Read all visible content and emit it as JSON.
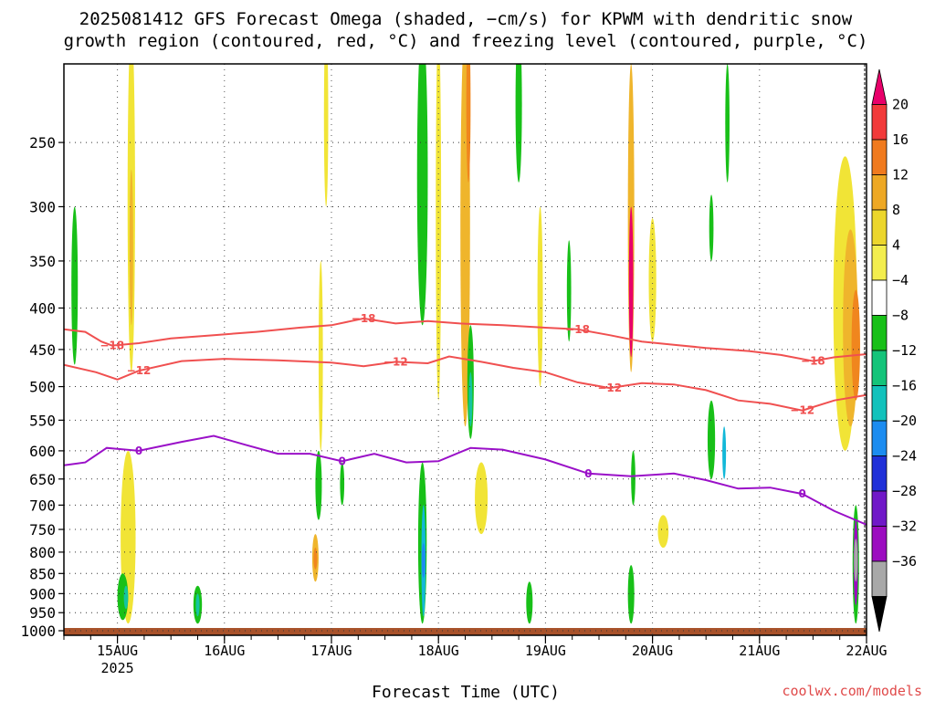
{
  "title": {
    "line1": "2025081412 GFS Forecast Omega (shaded, −cm/s) for KPWM with dendritic snow",
    "line2": "growth region (contoured, red, °C) and freezing level (contoured, purple, °C)"
  },
  "xlabel": "Forecast Time (UTC)",
  "credit": "coolwx.com/models",
  "chart_data": {
    "type": "heatmap",
    "x_ticks": [
      {
        "label": "15AUG",
        "sublabel": "2025",
        "day": 15
      },
      {
        "label": "16AUG",
        "day": 16
      },
      {
        "label": "17AUG",
        "day": 17
      },
      {
        "label": "18AUG",
        "day": 18
      },
      {
        "label": "19AUG",
        "day": 19
      },
      {
        "label": "20AUG",
        "day": 20
      },
      {
        "label": "21AUG",
        "day": 21
      },
      {
        "label": "22AUG",
        "day": 22
      }
    ],
    "xlim_day": [
      14.5,
      22.0
    ],
    "y_ticks": [
      250,
      300,
      350,
      400,
      450,
      500,
      550,
      600,
      650,
      700,
      750,
      800,
      850,
      900,
      950,
      1000
    ],
    "ylim_hPa": [
      200,
      1013
    ],
    "y_scale": "log",
    "colorbar": {
      "labels": [
        "20",
        "16",
        "12",
        "8",
        "4",
        "−4",
        "−8",
        "−12",
        "−16",
        "−20",
        "−24",
        "−28",
        "−32",
        "−36"
      ],
      "colors": [
        "#e8006a",
        "#f23a3a",
        "#f07a1e",
        "#eea824",
        "#ecd62c",
        "#f3ee4e",
        "#ffffff",
        "#18c018",
        "#14c47a",
        "#12c2bc",
        "#1c8cf0",
        "#2030d8",
        "#7018c8",
        "#9c0cc0",
        "#a8a8a8",
        "#000000"
      ]
    },
    "contours": [
      {
        "name": "-18",
        "color": "#f05050",
        "labels": [
          "−18",
          "−18",
          "−18",
          "−18"
        ],
        "points": [
          [
            14.5,
            425
          ],
          [
            14.7,
            428
          ],
          [
            14.85,
            440
          ],
          [
            14.95,
            445
          ],
          [
            15.2,
            442
          ],
          [
            15.5,
            436
          ],
          [
            15.9,
            432
          ],
          [
            16.3,
            428
          ],
          [
            16.7,
            423
          ],
          [
            17.0,
            420
          ],
          [
            17.3,
            412
          ],
          [
            17.6,
            418
          ],
          [
            17.9,
            415
          ],
          [
            18.2,
            418
          ],
          [
            18.6,
            420
          ],
          [
            19.0,
            423
          ],
          [
            19.3,
            425
          ],
          [
            19.6,
            432
          ],
          [
            19.9,
            440
          ],
          [
            20.2,
            444
          ],
          [
            20.5,
            448
          ],
          [
            20.9,
            452
          ],
          [
            21.2,
            457
          ],
          [
            21.5,
            465
          ],
          [
            21.7,
            460
          ],
          [
            22.0,
            456
          ]
        ]
      },
      {
        "name": "-12",
        "color": "#f05050",
        "labels": [
          "−12",
          "−12",
          "−12",
          "−12"
        ],
        "points": [
          [
            14.5,
            470
          ],
          [
            14.8,
            480
          ],
          [
            15.0,
            490
          ],
          [
            15.2,
            478
          ],
          [
            15.6,
            465
          ],
          [
            16.0,
            462
          ],
          [
            16.5,
            464
          ],
          [
            17.0,
            467
          ],
          [
            17.3,
            472
          ],
          [
            17.6,
            466
          ],
          [
            17.9,
            468
          ],
          [
            18.1,
            459
          ],
          [
            18.4,
            466
          ],
          [
            18.7,
            474
          ],
          [
            19.0,
            480
          ],
          [
            19.3,
            494
          ],
          [
            19.6,
            502
          ],
          [
            19.9,
            495
          ],
          [
            20.2,
            497
          ],
          [
            20.5,
            505
          ],
          [
            20.8,
            520
          ],
          [
            21.1,
            525
          ],
          [
            21.4,
            535
          ],
          [
            21.7,
            520
          ],
          [
            22.0,
            512
          ]
        ]
      },
      {
        "name": "0",
        "color": "#9a10c8",
        "labels": [
          "0",
          "0",
          "0",
          "0"
        ],
        "points": [
          [
            14.5,
            625
          ],
          [
            14.7,
            620
          ],
          [
            14.9,
            595
          ],
          [
            15.2,
            600
          ],
          [
            15.6,
            585
          ],
          [
            15.9,
            575
          ],
          [
            16.2,
            590
          ],
          [
            16.5,
            605
          ],
          [
            16.8,
            605
          ],
          [
            17.1,
            618
          ],
          [
            17.4,
            605
          ],
          [
            17.7,
            620
          ],
          [
            18.0,
            618
          ],
          [
            18.3,
            595
          ],
          [
            18.6,
            598
          ],
          [
            19.0,
            615
          ],
          [
            19.4,
            640
          ],
          [
            19.8,
            645
          ],
          [
            20.2,
            640
          ],
          [
            20.5,
            652
          ],
          [
            20.8,
            668
          ],
          [
            21.1,
            666
          ],
          [
            21.4,
            678
          ],
          [
            21.7,
            712
          ],
          [
            22.0,
            740
          ]
        ]
      }
    ],
    "omega_blobs": [
      {
        "day": 15.1,
        "p0": 660,
        "p1": 760,
        "w": 0.06,
        "level": 16
      },
      {
        "day": 15.1,
        "p0": 600,
        "p1": 980,
        "w": 0.14,
        "level": 4
      },
      {
        "day": 15.05,
        "p0": 850,
        "p1": 970,
        "w": 0.1,
        "level": -8
      },
      {
        "day": 15.08,
        "p0": 880,
        "p1": 940,
        "w": 0.04,
        "level": -12
      },
      {
        "day": 14.6,
        "p0": 300,
        "p1": 470,
        "w": 0.06,
        "level": -4
      },
      {
        "day": 15.13,
        "p0": 180,
        "p1": 480,
        "w": 0.07,
        "level": 4
      },
      {
        "day": 15.13,
        "p0": 270,
        "p1": 420,
        "w": 0.03,
        "level": 8
      },
      {
        "day": 15.75,
        "p0": 880,
        "p1": 980,
        "w": 0.08,
        "level": -8
      },
      {
        "day": 15.75,
        "p0": 900,
        "p1": 960,
        "w": 0.03,
        "level": -12
      },
      {
        "day": 16.85,
        "p0": 760,
        "p1": 870,
        "w": 0.06,
        "level": 8
      },
      {
        "day": 16.85,
        "p0": 790,
        "p1": 840,
        "w": 0.025,
        "level": 12
      },
      {
        "day": 16.9,
        "p0": 350,
        "p1": 600,
        "w": 0.04,
        "level": 4
      },
      {
        "day": 16.88,
        "p0": 600,
        "p1": 730,
        "w": 0.06,
        "level": -8
      },
      {
        "day": 17.1,
        "p0": 620,
        "p1": 700,
        "w": 0.04,
        "level": -8
      },
      {
        "day": 16.95,
        "p0": 180,
        "p1": 300,
        "w": 0.04,
        "level": 4
      },
      {
        "day": 17.85,
        "p0": 180,
        "p1": 420,
        "w": 0.1,
        "level": -8
      },
      {
        "day": 17.85,
        "p0": 620,
        "p1": 980,
        "w": 0.08,
        "level": -8
      },
      {
        "day": 17.86,
        "p0": 700,
        "p1": 960,
        "w": 0.04,
        "level": -16
      },
      {
        "day": 17.86,
        "p0": 780,
        "p1": 860,
        "w": 0.02,
        "level": -20
      },
      {
        "day": 18.0,
        "p0": 180,
        "p1": 520,
        "w": 0.05,
        "level": 4
      },
      {
        "day": 18.25,
        "p0": 180,
        "p1": 560,
        "w": 0.09,
        "level": 8
      },
      {
        "day": 18.28,
        "p0": 180,
        "p1": 280,
        "w": 0.04,
        "level": 12
      },
      {
        "day": 18.3,
        "p0": 420,
        "p1": 580,
        "w": 0.06,
        "level": -8
      },
      {
        "day": 18.3,
        "p0": 480,
        "p1": 560,
        "w": 0.025,
        "level": -12
      },
      {
        "day": 18.4,
        "p0": 620,
        "p1": 760,
        "w": 0.12,
        "level": 4
      },
      {
        "day": 18.75,
        "p0": 180,
        "p1": 280,
        "w": 0.06,
        "level": -8
      },
      {
        "day": 18.95,
        "p0": 300,
        "p1": 500,
        "w": 0.05,
        "level": 4
      },
      {
        "day": 18.85,
        "p0": 870,
        "p1": 980,
        "w": 0.06,
        "level": -8
      },
      {
        "day": 19.22,
        "p0": 330,
        "p1": 440,
        "w": 0.04,
        "level": -8
      },
      {
        "day": 19.8,
        "p0": 200,
        "p1": 480,
        "w": 0.06,
        "level": 8
      },
      {
        "day": 19.8,
        "p0": 300,
        "p1": 460,
        "w": 0.04,
        "level": 20
      },
      {
        "day": 19.8,
        "p0": 830,
        "p1": 980,
        "w": 0.06,
        "level": -8
      },
      {
        "day": 19.82,
        "p0": 600,
        "p1": 700,
        "w": 0.04,
        "level": -8
      },
      {
        "day": 20.0,
        "p0": 310,
        "p1": 440,
        "w": 0.07,
        "level": 4
      },
      {
        "day": 20.1,
        "p0": 720,
        "p1": 790,
        "w": 0.1,
        "level": 4
      },
      {
        "day": 20.55,
        "p0": 520,
        "p1": 650,
        "w": 0.07,
        "level": -8
      },
      {
        "day": 20.67,
        "p0": 560,
        "p1": 650,
        "w": 0.03,
        "level": -16
      },
      {
        "day": 20.7,
        "p0": 200,
        "p1": 280,
        "w": 0.04,
        "level": -8
      },
      {
        "day": 20.55,
        "p0": 290,
        "p1": 350,
        "w": 0.04,
        "level": -8
      },
      {
        "day": 21.8,
        "p0": 260,
        "p1": 600,
        "w": 0.22,
        "level": 4
      },
      {
        "day": 21.85,
        "p0": 320,
        "p1": 560,
        "w": 0.14,
        "level": 8
      },
      {
        "day": 21.9,
        "p0": 380,
        "p1": 520,
        "w": 0.08,
        "level": 12
      },
      {
        "day": 21.9,
        "p0": 700,
        "p1": 980,
        "w": 0.06,
        "level": -8
      },
      {
        "day": 21.9,
        "p0": 730,
        "p1": 930,
        "w": 0.04,
        "level": -28
      },
      {
        "day": 21.9,
        "p0": 770,
        "p1": 870,
        "w": 0.025,
        "level": -32
      }
    ],
    "ground_band": {
      "color": "#a8522a"
    }
  }
}
